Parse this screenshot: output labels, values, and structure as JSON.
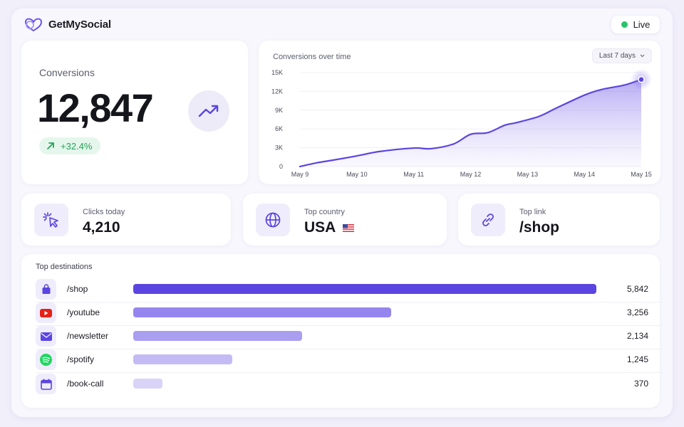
{
  "header": {
    "brand_name": "GetMySocial",
    "live_label": "Live",
    "live_color": "#2bc26b"
  },
  "conversions": {
    "title": "Conversions",
    "value": "12,847",
    "change": "+32.4%",
    "trend_icon": "trending-up-icon"
  },
  "chart": {
    "title": "Conversions over time",
    "range_label": "Last 7 days",
    "chart_data": {
      "type": "area",
      "title": "Conversions over time",
      "x": [
        "May 9",
        "May 10",
        "May 11",
        "May 12",
        "May 13",
        "May 14",
        "May 15"
      ],
      "y_ticks": [
        "15K",
        "12K",
        "9K",
        "6K",
        "3K",
        "0"
      ],
      "ylim": [
        0,
        15000
      ],
      "series": [
        {
          "values": [
            [
              0,
              0
            ],
            [
              0.3,
              600
            ],
            [
              0.6,
              1050
            ],
            [
              1.0,
              1700
            ],
            [
              1.4,
              2400
            ],
            [
              2.0,
              2950
            ],
            [
              2.3,
              2850
            ],
            [
              2.7,
              3600
            ],
            [
              3.0,
              5150
            ],
            [
              3.3,
              5400
            ],
            [
              3.6,
              6600
            ],
            [
              3.8,
              7000
            ],
            [
              4.2,
              8000
            ],
            [
              4.5,
              9300
            ],
            [
              5.0,
              11400
            ],
            [
              5.3,
              12300
            ],
            [
              5.7,
              13000
            ],
            [
              6.0,
              13900
            ]
          ]
        }
      ],
      "grid": true,
      "accent": "#5b45e0"
    }
  },
  "stats": [
    {
      "label": "Clicks today",
      "value": "4,210",
      "icon": "cursor-click-icon"
    },
    {
      "label": "Top country",
      "value": "USA",
      "icon": "globe-icon",
      "flag": "us-flag"
    },
    {
      "label": "Top link",
      "value": "/shop",
      "icon": "link-icon"
    }
  ],
  "destinations": {
    "title": "Top destinations",
    "max": 5842,
    "rows": [
      {
        "label": "/shop",
        "value": "5,842",
        "number": 5842,
        "icon": "shopping-bag-icon",
        "color": "#5b45e0"
      },
      {
        "label": "/youtube",
        "value": "3,256",
        "number": 3256,
        "icon": "youtube-icon",
        "color": "#9585ee"
      },
      {
        "label": "/newsletter",
        "value": "2,134",
        "number": 2134,
        "icon": "mail-icon",
        "color": "#aa9ef1"
      },
      {
        "label": "/spotify",
        "value": "1,245",
        "number": 1245,
        "icon": "spotify-icon",
        "color": "#c4bbf5"
      },
      {
        "label": "/book-call",
        "value": "370",
        "number": 370,
        "icon": "calendar-icon",
        "color": "#d9d3f8"
      }
    ]
  }
}
